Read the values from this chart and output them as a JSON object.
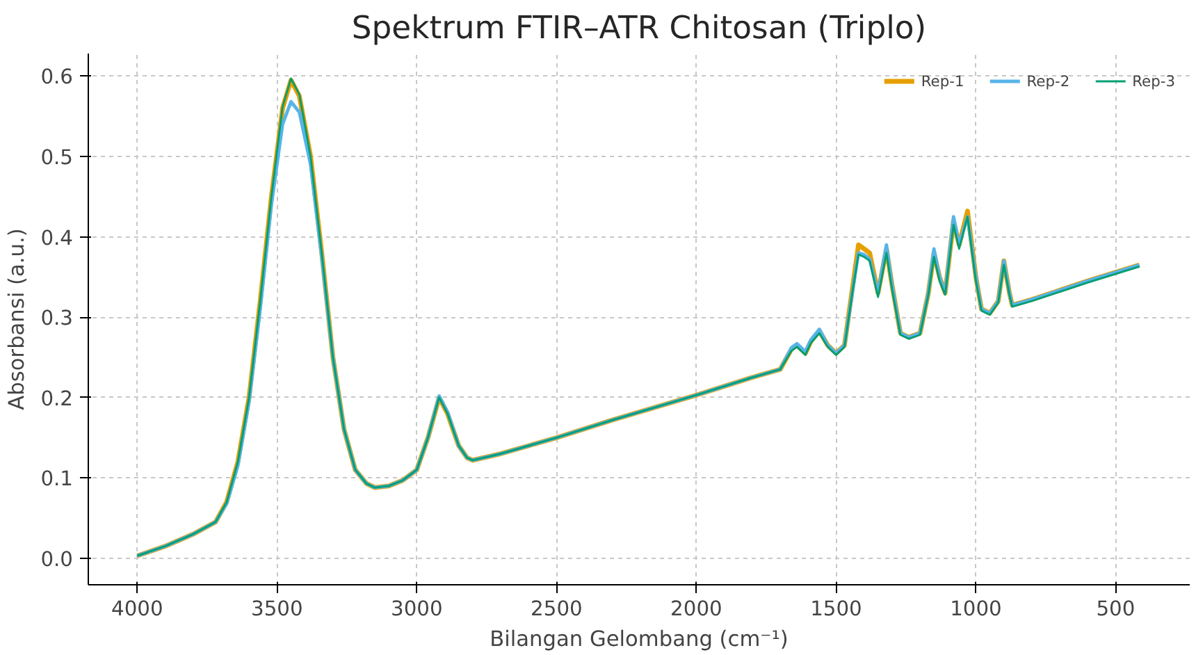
{
  "chart_data": {
    "type": "line",
    "title": "Spektrum FTIR–ATR Chitosan (Triplo)",
    "xlabel": "Bilangan Gelombang (cm⁻¹)",
    "ylabel": "Absorbansi (a.u.)",
    "x": [
      4000,
      3900,
      3800,
      3720,
      3680,
      3640,
      3600,
      3560,
      3520,
      3480,
      3450,
      3420,
      3380,
      3340,
      3300,
      3260,
      3220,
      3180,
      3150,
      3100,
      3050,
      3000,
      2960,
      2920,
      2890,
      2850,
      2820,
      2800,
      2700,
      2500,
      2300,
      2000,
      1800,
      1700,
      1660,
      1640,
      1610,
      1590,
      1560,
      1530,
      1500,
      1470,
      1440,
      1420,
      1400,
      1380,
      1350,
      1320,
      1300,
      1270,
      1240,
      1200,
      1170,
      1150,
      1130,
      1110,
      1080,
      1060,
      1030,
      1000,
      980,
      950,
      920,
      900,
      880,
      870,
      800,
      600,
      415
    ],
    "series": [
      {
        "name": "Rep-1",
        "color": "#e69f00",
        "values": [
          0.003,
          0.015,
          0.03,
          0.045,
          0.07,
          0.12,
          0.2,
          0.32,
          0.45,
          0.56,
          0.595,
          0.575,
          0.5,
          0.38,
          0.25,
          0.16,
          0.11,
          0.093,
          0.088,
          0.09,
          0.097,
          0.11,
          0.15,
          0.2,
          0.18,
          0.14,
          0.125,
          0.122,
          0.13,
          0.15,
          0.172,
          0.203,
          0.225,
          0.235,
          0.26,
          0.265,
          0.255,
          0.27,
          0.283,
          0.265,
          0.255,
          0.265,
          0.34,
          0.39,
          0.385,
          0.38,
          0.33,
          0.385,
          0.34,
          0.28,
          0.275,
          0.28,
          0.33,
          0.38,
          0.35,
          0.33,
          0.42,
          0.39,
          0.432,
          0.35,
          0.31,
          0.305,
          0.32,
          0.37,
          0.33,
          0.315,
          0.322,
          0.345,
          0.365
        ]
      },
      {
        "name": "Rep-2",
        "color": "#56b4e9",
        "values": [
          0.003,
          0.015,
          0.03,
          0.045,
          0.068,
          0.115,
          0.195,
          0.31,
          0.44,
          0.54,
          0.568,
          0.555,
          0.49,
          0.375,
          0.25,
          0.16,
          0.11,
          0.093,
          0.088,
          0.09,
          0.097,
          0.11,
          0.15,
          0.202,
          0.182,
          0.14,
          0.125,
          0.122,
          0.13,
          0.15,
          0.172,
          0.203,
          0.225,
          0.235,
          0.262,
          0.267,
          0.257,
          0.272,
          0.285,
          0.265,
          0.255,
          0.265,
          0.335,
          0.38,
          0.378,
          0.372,
          0.33,
          0.39,
          0.34,
          0.28,
          0.275,
          0.28,
          0.33,
          0.385,
          0.35,
          0.33,
          0.425,
          0.39,
          0.425,
          0.35,
          0.31,
          0.305,
          0.32,
          0.37,
          0.33,
          0.315,
          0.322,
          0.345,
          0.365
        ]
      },
      {
        "name": "Rep-3",
        "color": "#009e73",
        "values": [
          0.003,
          0.015,
          0.03,
          0.045,
          0.07,
          0.12,
          0.2,
          0.32,
          0.45,
          0.562,
          0.597,
          0.577,
          0.5,
          0.38,
          0.25,
          0.16,
          0.11,
          0.093,
          0.088,
          0.09,
          0.097,
          0.11,
          0.15,
          0.2,
          0.18,
          0.14,
          0.125,
          0.122,
          0.13,
          0.15,
          0.172,
          0.203,
          0.225,
          0.235,
          0.258,
          0.263,
          0.253,
          0.268,
          0.28,
          0.263,
          0.253,
          0.263,
          0.335,
          0.378,
          0.375,
          0.37,
          0.325,
          0.38,
          0.335,
          0.278,
          0.273,
          0.278,
          0.328,
          0.375,
          0.345,
          0.328,
          0.415,
          0.385,
          0.425,
          0.345,
          0.308,
          0.303,
          0.318,
          0.365,
          0.328,
          0.313,
          0.32,
          0.343,
          0.363
        ]
      }
    ],
    "xlim": [
      4175,
      235
    ],
    "ylim": [
      -0.033,
      0.628
    ],
    "xticks": [
      4000,
      3500,
      3000,
      2500,
      2000,
      1500,
      1000,
      500
    ],
    "yticks": [
      {
        "value": 0,
        "label": "0.0"
      },
      0.1,
      0.2,
      0.3,
      0.4,
      0.5,
      0.6
    ],
    "grid": true,
    "legend": "top right",
    "line_style": "solid"
  }
}
